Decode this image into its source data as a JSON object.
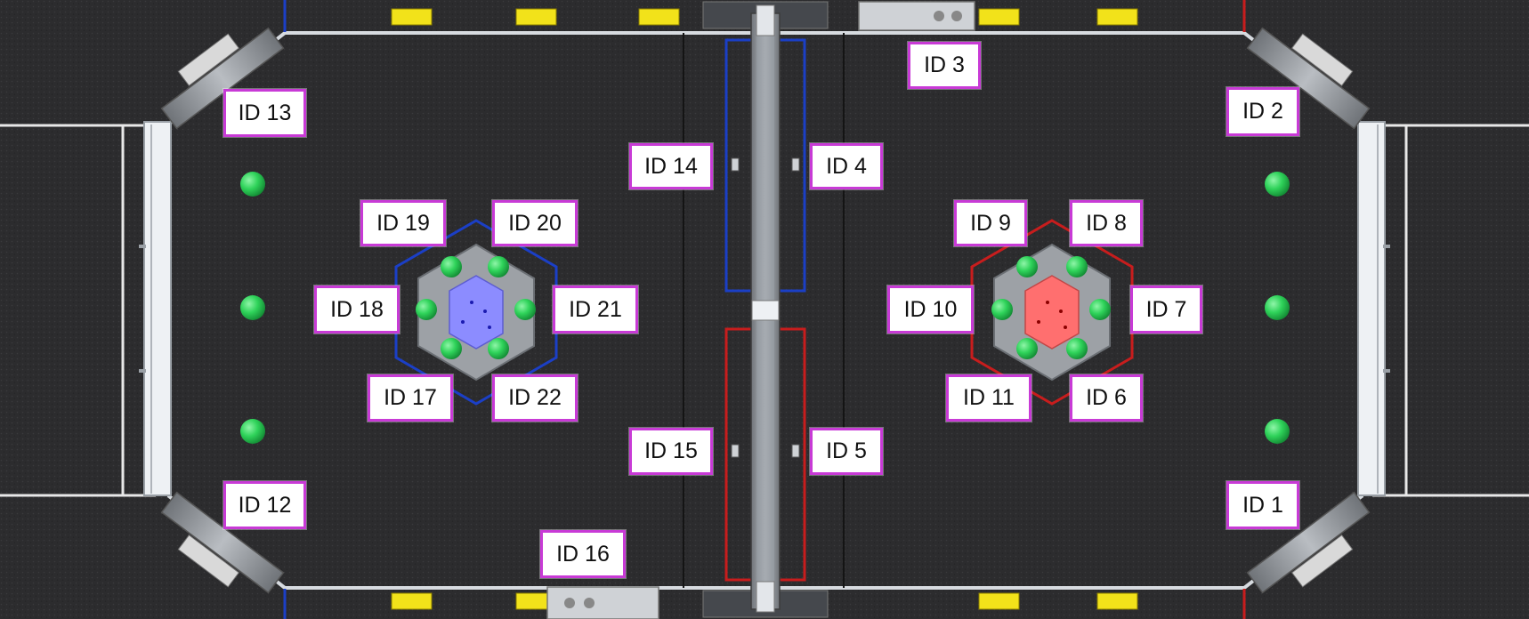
{
  "colors": {
    "carpet": "#2b2b2d",
    "wall": "#d9dde2",
    "tag_border": "#c83ad6",
    "alliance_blue": "#1b3fc6",
    "alliance_red": "#c81d1d",
    "cargo_green": "#2fd35a",
    "marker_yellow": "#f2e21a",
    "blue_core": "#8c8cff",
    "red_core": "#ff6f6f"
  },
  "icons": {
    "tag": "apriltag-label-icon",
    "ball": "green-ball-icon",
    "hub": "hexagon-hub-icon",
    "marker": "yellow-marker-icon",
    "station": "driver-station-icon"
  },
  "tags": [
    {
      "id": "1",
      "label": "ID 1"
    },
    {
      "id": "2",
      "label": "ID 2"
    },
    {
      "id": "3",
      "label": "ID 3"
    },
    {
      "id": "4",
      "label": "ID 4"
    },
    {
      "id": "5",
      "label": "ID 5"
    },
    {
      "id": "6",
      "label": "ID 6"
    },
    {
      "id": "7",
      "label": "ID 7"
    },
    {
      "id": "8",
      "label": "ID 8"
    },
    {
      "id": "9",
      "label": "ID 9"
    },
    {
      "id": "10",
      "label": "ID 10"
    },
    {
      "id": "11",
      "label": "ID 11"
    },
    {
      "id": "12",
      "label": "ID 12"
    },
    {
      "id": "13",
      "label": "ID 13"
    },
    {
      "id": "14",
      "label": "ID 14"
    },
    {
      "id": "15",
      "label": "ID 15"
    },
    {
      "id": "16",
      "label": "ID 16"
    },
    {
      "id": "17",
      "label": "ID 17"
    },
    {
      "id": "18",
      "label": "ID 18"
    },
    {
      "id": "19",
      "label": "ID 19"
    },
    {
      "id": "20",
      "label": "ID 20"
    },
    {
      "id": "21",
      "label": "ID 21"
    },
    {
      "id": "22",
      "label": "ID 22"
    }
  ]
}
